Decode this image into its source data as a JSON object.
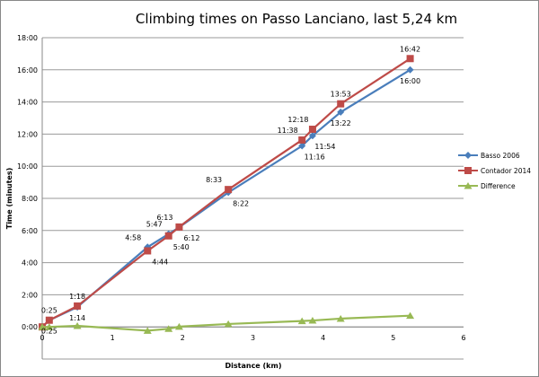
{
  "chart_data": {
    "type": "line",
    "title": "Climbing times on Passo Lanciano, last 5,24 km",
    "xlabel": "Distance (km)",
    "ylabel": "Time (minutes)",
    "xlim": [
      0,
      6
    ],
    "ylim": [
      -2,
      18
    ],
    "x_ticks": [
      "0",
      "1",
      "2",
      "3",
      "4",
      "5",
      "6"
    ],
    "y_ticks": [
      "0:00",
      "2:00",
      "4:00",
      "6:00",
      "8:00",
      "10:00",
      "12:00",
      "14:00",
      "16:00",
      "18:00"
    ],
    "grid": true,
    "legend_position": "right",
    "x": [
      0,
      0.1,
      0.5,
      1.5,
      1.8,
      1.95,
      2.65,
      3.7,
      3.85,
      4.25,
      5.24
    ],
    "series": [
      {
        "name": "Basso 2006",
        "color": "#4A7EBB",
        "marker": "diamond",
        "values": [
          0,
          0.4167,
          1.2333,
          4.9667,
          5.7833,
          6.2,
          8.3667,
          11.2667,
          11.9,
          13.3667,
          16.0
        ],
        "labels": [
          "",
          "0:25",
          "1:14",
          "4:58",
          "5:47",
          "6:12",
          "8:22",
          "11:16",
          "11:54",
          "13:22",
          "16:00"
        ]
      },
      {
        "name": "Contador 2014",
        "color": "#BE4B48",
        "marker": "square",
        "values": [
          0,
          0.4167,
          1.3,
          4.7333,
          5.6667,
          6.2167,
          8.55,
          11.6333,
          12.3,
          13.8833,
          16.7
        ],
        "labels": [
          "",
          "0:25",
          "1:18",
          "4:44",
          "5:40",
          "6:13",
          "8:33",
          "11:38",
          "12:18",
          "13:53",
          "16:42"
        ]
      },
      {
        "name": "Difference",
        "color": "#98B954",
        "marker": "triangle",
        "values": [
          0,
          0,
          0.0667,
          -0.2333,
          -0.1167,
          0.0167,
          0.1833,
          0.3667,
          0.4,
          0.5167,
          0.7
        ],
        "labels": []
      }
    ]
  }
}
